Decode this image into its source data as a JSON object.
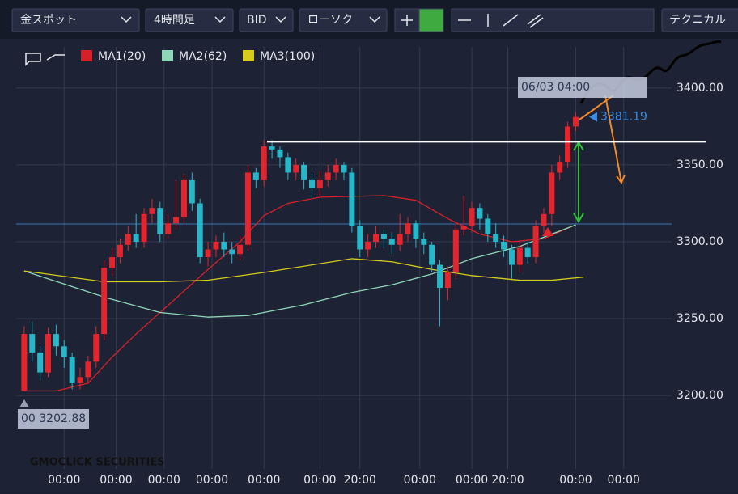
{
  "toolbar": {
    "symbol": "金スポット",
    "timeframe": "4時間足",
    "side": "BID",
    "chart_style": "ローソク",
    "technical": "テクニカル"
  },
  "brand": "GMOCLICK SECURITIES",
  "chart_data": {
    "type": "candlestick",
    "open": [
      3203,
      3240,
      3228,
      3215,
      3240,
      3232,
      3225,
      3208,
      3212,
      3222,
      3240,
      3283,
      3290,
      3298,
      3305,
      3300,
      3318,
      3322,
      3305,
      3312,
      3316,
      3340,
      3325,
      3290,
      3295,
      3300,
      3295,
      3292,
      3298,
      3345,
      3340,
      3362,
      3360,
      3355,
      3345,
      3350,
      3340,
      3335,
      3340,
      3345,
      3350,
      3345,
      3310,
      3295,
      3300,
      3305,
      3302,
      3298,
      3305,
      3312,
      3302,
      3298,
      3285,
      3270,
      3280,
      3308,
      3310,
      3322,
      3315,
      3305,
      3300,
      3295,
      3285,
      3296,
      3290,
      3310,
      3318,
      3345,
      3352,
      3375
    ],
    "high": [
      3245,
      3248,
      3232,
      3244,
      3246,
      3236,
      3228,
      3218,
      3226,
      3245,
      3288,
      3296,
      3302,
      3310,
      3318,
      3322,
      3328,
      3326,
      3318,
      3340,
      3344,
      3345,
      3328,
      3300,
      3304,
      3306,
      3300,
      3304,
      3350,
      3348,
      3366,
      3366,
      3362,
      3358,
      3354,
      3352,
      3344,
      3346,
      3350,
      3354,
      3352,
      3348,
      3314,
      3305,
      3310,
      3308,
      3306,
      3318,
      3316,
      3314,
      3306,
      3300,
      3288,
      3284,
      3312,
      3330,
      3326,
      3325,
      3318,
      3312,
      3304,
      3298,
      3300,
      3300,
      3314,
      3322,
      3350,
      3356,
      3378,
      3384
    ],
    "low": [
      3202.88,
      3222,
      3210,
      3212,
      3226,
      3218,
      3204,
      3204,
      3208,
      3218,
      3236,
      3278,
      3286,
      3294,
      3296,
      3296,
      3312,
      3300,
      3302,
      3308,
      3312,
      3320,
      3286,
      3284,
      3290,
      3290,
      3286,
      3288,
      3294,
      3335,
      3336,
      3354,
      3348,
      3340,
      3340,
      3334,
      3328,
      3330,
      3336,
      3340,
      3340,
      3306,
      3290,
      3290,
      3296,
      3296,
      3292,
      3294,
      3300,
      3296,
      3292,
      3280,
      3245,
      3262,
      3276,
      3304,
      3306,
      3308,
      3300,
      3296,
      3290,
      3276,
      3280,
      3286,
      3286,
      3306,
      3310,
      3340,
      3348,
      3372
    ],
    "close": [
      3240,
      3228,
      3215,
      3240,
      3232,
      3225,
      3208,
      3212,
      3222,
      3240,
      3283,
      3290,
      3298,
      3305,
      3300,
      3318,
      3322,
      3305,
      3312,
      3316,
      3340,
      3325,
      3290,
      3295,
      3300,
      3295,
      3292,
      3298,
      3345,
      3340,
      3362,
      3360,
      3355,
      3345,
      3350,
      3340,
      3335,
      3340,
      3345,
      3350,
      3345,
      3310,
      3295,
      3300,
      3305,
      3302,
      3298,
      3305,
      3312,
      3302,
      3298,
      3285,
      3270,
      3280,
      3308,
      3310,
      3322,
      3315,
      3305,
      3300,
      3295,
      3285,
      3296,
      3290,
      3310,
      3318,
      3345,
      3352,
      3375,
      3381.19
    ],
    "up_color": "#e3262d",
    "down_color": "#27b7c9",
    "series": [
      {
        "name": "MA1(20)",
        "color": "#d8202a",
        "x": [
          0,
          4,
          8,
          11,
          14,
          17,
          20,
          23,
          27,
          30,
          33,
          37,
          45,
          49,
          53,
          57,
          61,
          65,
          69
        ],
        "values": [
          3203,
          3203,
          3208,
          3225,
          3240,
          3254,
          3268,
          3282,
          3300,
          3317,
          3325,
          3329,
          3330,
          3327,
          3315,
          3305,
          3300,
          3302,
          3311
        ]
      },
      {
        "name": "MA2(62)",
        "color": "#8fd6b8",
        "x": [
          0,
          10,
          17,
          23,
          28,
          35,
          41,
          46,
          51,
          56,
          62,
          69
        ],
        "values": [
          3281,
          3264,
          3254,
          3251,
          3252,
          3259,
          3267,
          3272,
          3279,
          3289,
          3297,
          3311
        ]
      },
      {
        "name": "MA3(100)",
        "color": "#d6cc1c",
        "x": [
          0,
          10,
          17,
          23,
          30,
          41,
          46,
          51,
          56,
          62,
          66,
          70
        ],
        "values": [
          3281,
          3274,
          3274,
          3275,
          3280,
          3289,
          3287,
          3282,
          3278,
          3275,
          3275,
          3277
        ]
      }
    ],
    "ylim": [
      3168,
      3432
    ],
    "yticks": [
      {
        "value": 3200,
        "label": "3200.00"
      },
      {
        "value": 3250,
        "label": "3250.00"
      },
      {
        "value": 3300,
        "label": "3300.00"
      },
      {
        "value": 3350,
        "label": "3350.00"
      },
      {
        "value": 3400,
        "label": "3400.00"
      }
    ],
    "xlim": [
      -1,
      81
    ],
    "xticks": [
      {
        "value": 5,
        "label": "00:00"
      },
      {
        "value": 11.5,
        "label": "00:00"
      },
      {
        "value": 17.5,
        "label": "00:00"
      },
      {
        "value": 23.5,
        "label": "00:00"
      },
      {
        "value": 30,
        "label": "00:00"
      },
      {
        "value": 37,
        "label": "00:00"
      },
      {
        "value": 42,
        "label": "20:00"
      },
      {
        "value": 49.5,
        "label": "00:00"
      },
      {
        "value": 56,
        "label": "00:00"
      },
      {
        "value": 60.5,
        "label": "20:00"
      },
      {
        "value": 69,
        "label": "00:00"
      },
      {
        "value": 75,
        "label": "00:00"
      }
    ],
    "grid": true,
    "price_line": 3311.6,
    "resistance_line": 3365,
    "last_label": "3381.19",
    "cursor_label": "06/03 04:00",
    "first_label": "00 3202.88"
  }
}
